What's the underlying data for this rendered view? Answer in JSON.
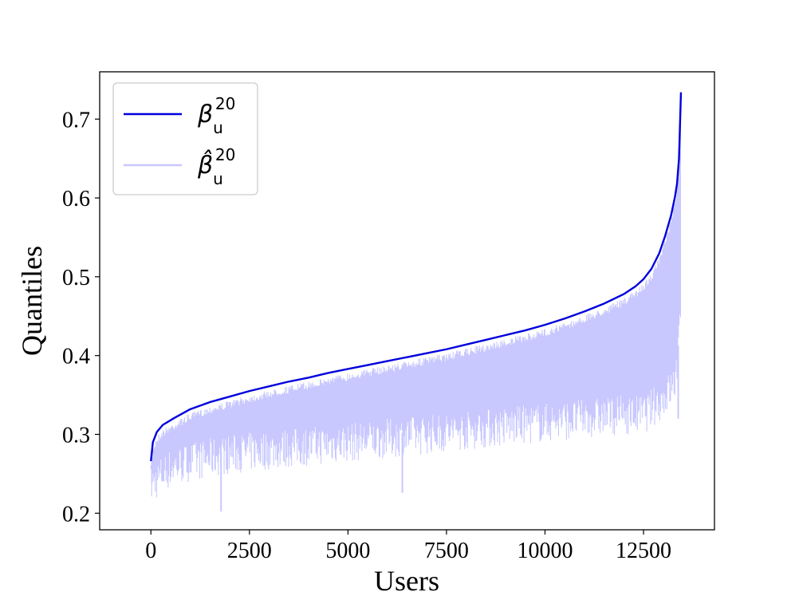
{
  "chart_data": {
    "type": "line",
    "title": "",
    "xlabel": "Users",
    "ylabel": "Quantiles",
    "xlim": [
      -1300,
      14300
    ],
    "ylim": [
      0.179,
      0.76
    ],
    "xticks": [
      0,
      2500,
      5000,
      7500,
      10000,
      12500
    ],
    "xtick_labels": [
      "0",
      "2500",
      "5000",
      "7500",
      "10000",
      "12500"
    ],
    "yticks": [
      0.2,
      0.3,
      0.4,
      0.5,
      0.6,
      0.7
    ],
    "ytick_labels": [
      "0.2",
      "0.3",
      "0.4",
      "0.5",
      "0.6",
      "0.7"
    ],
    "grid": false,
    "legend_position": "top-left",
    "series": [
      {
        "name": "β_u^20",
        "legend_base": "β",
        "legend_sub": "u",
        "legend_sup": "20",
        "color": "#0000dd",
        "x": [
          0,
          50,
          150,
          300,
          600,
          1000,
          1500,
          2000,
          2500,
          3000,
          3500,
          4000,
          4500,
          5000,
          5500,
          6000,
          6500,
          7000,
          7500,
          8000,
          8500,
          9000,
          9500,
          10000,
          10500,
          11000,
          11500,
          12000,
          12300,
          12500,
          12700,
          12900,
          13050,
          13200,
          13300,
          13350,
          13400,
          13450
        ],
        "y": [
          0.266,
          0.29,
          0.303,
          0.312,
          0.321,
          0.332,
          0.341,
          0.348,
          0.355,
          0.361,
          0.367,
          0.372,
          0.378,
          0.383,
          0.388,
          0.393,
          0.398,
          0.403,
          0.408,
          0.414,
          0.42,
          0.426,
          0.432,
          0.439,
          0.447,
          0.456,
          0.466,
          0.478,
          0.488,
          0.497,
          0.51,
          0.53,
          0.552,
          0.578,
          0.602,
          0.618,
          0.65,
          0.734
        ]
      },
      {
        "name": "β̂_u^20",
        "legend_base": "β̂",
        "legend_sub": "u",
        "legend_sup": "20",
        "color": "#c8c8ff",
        "band_lower": {
          "x": [
            0,
            100,
            300,
            600,
            1000,
            1500,
            2000,
            3000,
            4000,
            5000,
            6000,
            7000,
            8000,
            9000,
            10000,
            11000,
            12000,
            12500,
            13000,
            13300,
            13450
          ],
          "y": [
            0.21,
            0.215,
            0.225,
            0.235,
            0.24,
            0.245,
            0.25,
            0.255,
            0.26,
            0.265,
            0.27,
            0.275,
            0.28,
            0.285,
            0.29,
            0.295,
            0.3,
            0.3,
            0.32,
            0.34,
            0.42
          ]
        },
        "band_upper_offset": -0.005,
        "spikes": [
          {
            "x": 1780,
            "y": 0.202
          },
          {
            "x": 6380,
            "y": 0.226
          },
          {
            "x": 13380,
            "y": 0.32
          }
        ]
      }
    ]
  }
}
